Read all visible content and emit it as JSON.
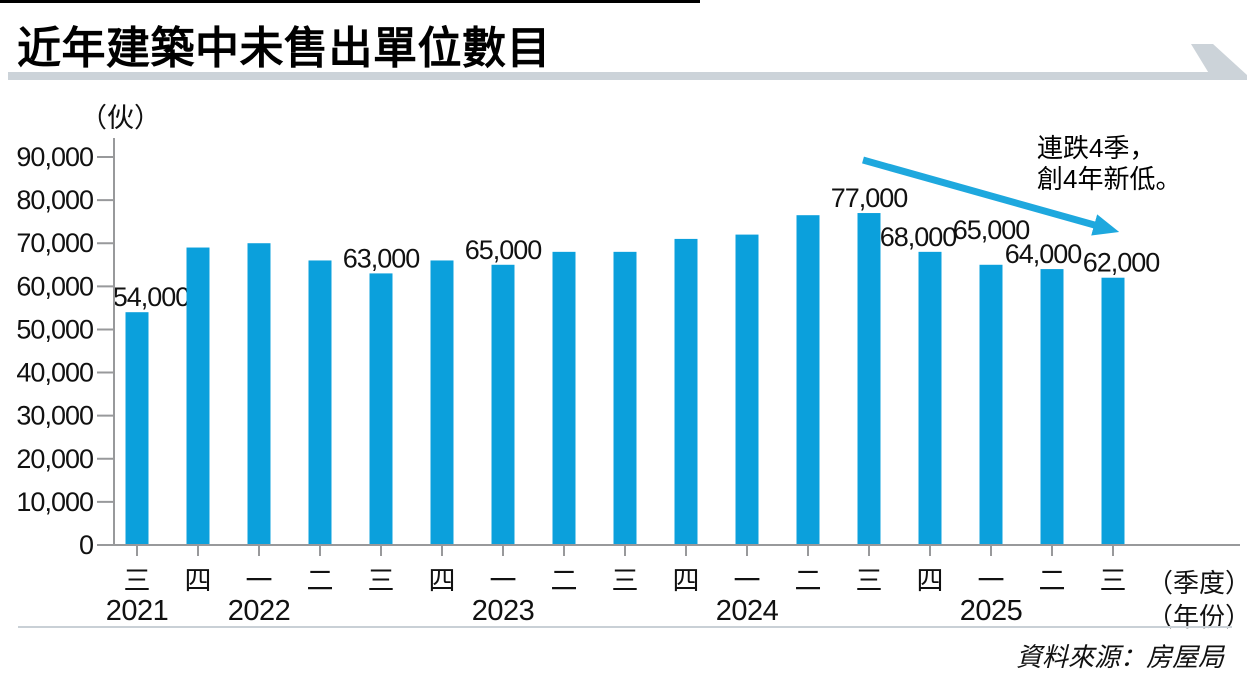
{
  "title": "近年建築中未售出單位數目",
  "unit_label": "（伙）",
  "axis_suffix": {
    "quarter": "（季度）",
    "year": "（年份）"
  },
  "annotation": {
    "line1": "連跌4季，",
    "line2": "創4年新低。"
  },
  "source": "資料來源：房屋局",
  "colors": {
    "bar": "#0ba0dc",
    "arrow": "#1ea8de",
    "axis": "#98999b",
    "header_bar": "#ccd3d9",
    "top_rule": "#000000",
    "footer_rule": "#c9d0d6"
  },
  "chart_data": {
    "type": "bar",
    "title": "近年建築中未售出單位數目",
    "unit": "伙",
    "ylabel": "（伙）",
    "xlabel": "季度／年份",
    "ylim": [
      0,
      90000
    ],
    "ytick_step": 10000,
    "grid": false,
    "legend": "none",
    "annotation": "連跌4季，創4年新低。",
    "points": [
      {
        "quarter": "三",
        "year": "2021",
        "value": 54000,
        "label": "54,000"
      },
      {
        "quarter": "四",
        "year": "2021",
        "value": 69000
      },
      {
        "quarter": "一",
        "year": "2022",
        "value": 70000
      },
      {
        "quarter": "二",
        "year": "2022",
        "value": 66000
      },
      {
        "quarter": "三",
        "year": "2022",
        "value": 63000,
        "label": "63,000"
      },
      {
        "quarter": "四",
        "year": "2022",
        "value": 66000
      },
      {
        "quarter": "一",
        "year": "2023",
        "value": 65000,
        "label": "65,000"
      },
      {
        "quarter": "二",
        "year": "2023",
        "value": 68000
      },
      {
        "quarter": "三",
        "year": "2023",
        "value": 68000
      },
      {
        "quarter": "四",
        "year": "2023",
        "value": 71000
      },
      {
        "quarter": "一",
        "year": "2024",
        "value": 72000
      },
      {
        "quarter": "二",
        "year": "2024",
        "value": 76500
      },
      {
        "quarter": "三",
        "year": "2024",
        "value": 77000,
        "label": "77,000"
      },
      {
        "quarter": "四",
        "year": "2024",
        "value": 68000,
        "label": "68,000"
      },
      {
        "quarter": "一",
        "year": "2025",
        "value": 65000,
        "label": "65,000"
      },
      {
        "quarter": "二",
        "year": "2025",
        "value": 64000,
        "label": "64,000"
      },
      {
        "quarter": "三",
        "year": "2025",
        "value": 62000,
        "label": "62,000"
      }
    ],
    "year_labels": [
      {
        "label": "2021",
        "index": 0
      },
      {
        "label": "2022",
        "index": 2
      },
      {
        "label": "2023",
        "index": 6
      },
      {
        "label": "2024",
        "index": 10
      },
      {
        "label": "2025",
        "index": 14
      }
    ]
  }
}
